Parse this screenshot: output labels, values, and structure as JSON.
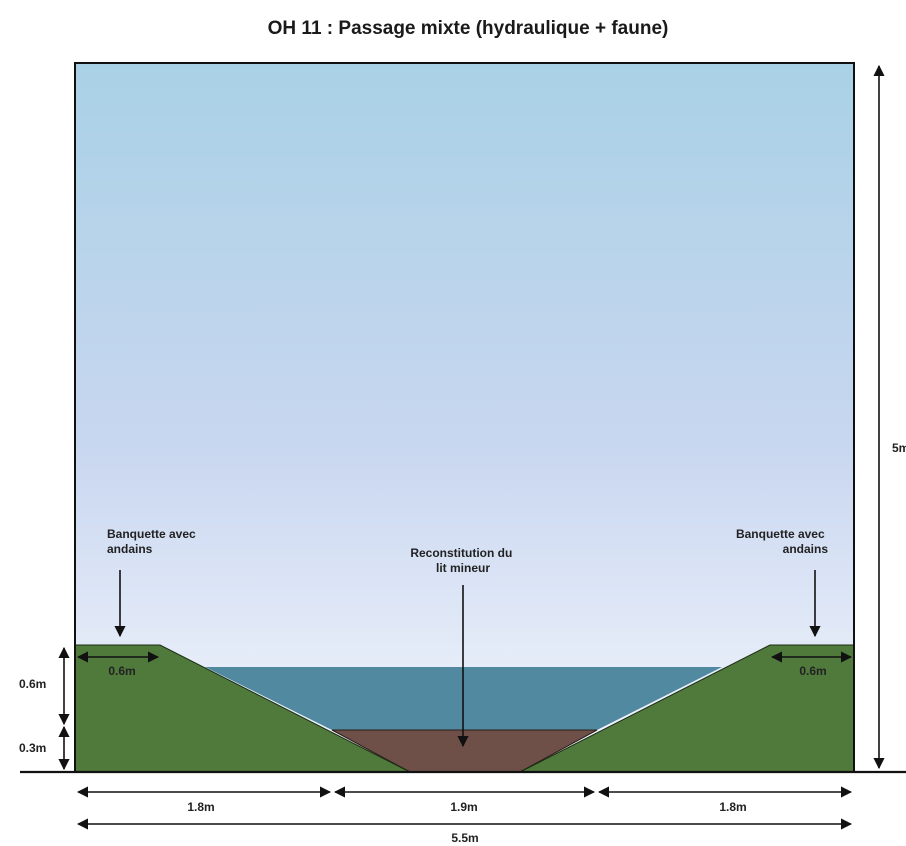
{
  "title": "OH 11 : Passage mixte (hydraulique + faune)",
  "labels": {
    "left_banquette": [
      "Banquette avec",
      "andains"
    ],
    "right_banquette": [
      "Banquette avec",
      "andains"
    ],
    "center_bed": [
      "Reconstitution du",
      "lit mineur"
    ]
  },
  "dimensions": {
    "left_width": "1.8m",
    "center_width": "1.9m",
    "right_width": "1.8m",
    "total_width": "5.5m",
    "height": "5m",
    "bank_height": "0.6m",
    "bed_height": "0.3m",
    "left_banquette_width": "0.6m",
    "right_banquette_width": "0.6m"
  },
  "colors": {
    "sky_top": "#a9d1e6",
    "sky_bottom": "#f4f7fd",
    "bank": "#4f7a3c",
    "water": "#5189a1",
    "bed": "#6e5048",
    "outline": "#111111"
  }
}
